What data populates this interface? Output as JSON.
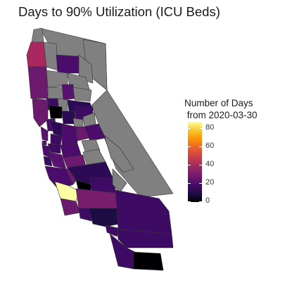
{
  "title": "Days to 90% Utilization (ICU Beds)",
  "legend": {
    "title_line1": "Number of Days",
    "title_line2": " from 2020-03-30",
    "ticks": [
      "80",
      "60",
      "40",
      "20",
      "0"
    ]
  },
  "colors": {
    "no_data": "#808080",
    "border": "#333333",
    "scale_low": "#000004",
    "scale_high": "#fcffa4"
  },
  "map": {
    "region": "California",
    "fill_metric": "days to 90% ICU bed utilization"
  }
}
